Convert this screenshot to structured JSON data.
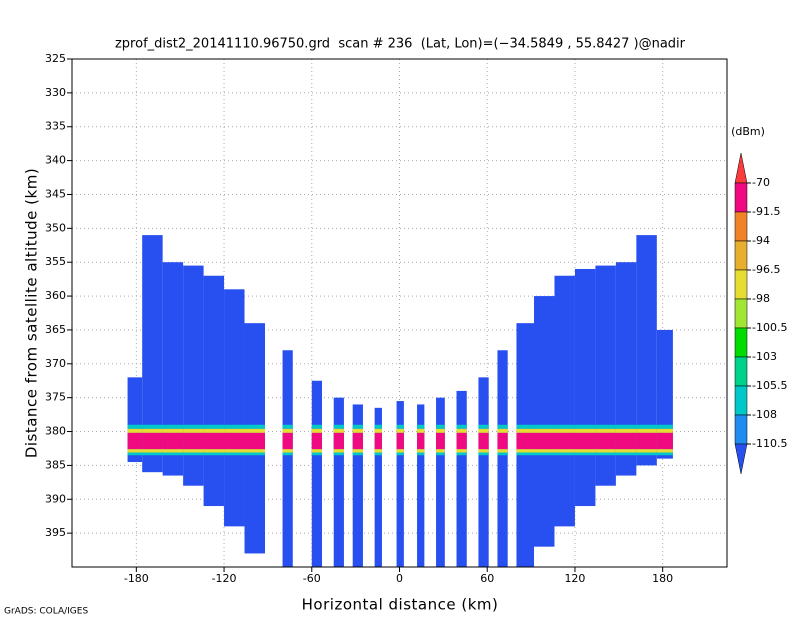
{
  "chart_data": {
    "type": "profile",
    "title": "zprof_dist2_20141110.96750.grd  scan # 236  (Lat, Lon)=(−34.5849 , 55.8427 )@nadir",
    "x_label": "Horizontal distance (km)",
    "y_label": "Distance from satellite altitude (km)",
    "credit": "GrADS: COLA/IGES",
    "xlim": [
      -224,
      224
    ],
    "xticks": [
      -180,
      -120,
      -60,
      0,
      60,
      120,
      180
    ],
    "ylim": [
      325,
      400
    ],
    "yticks": [
      325,
      330,
      335,
      340,
      345,
      350,
      355,
      360,
      365,
      370,
      375,
      380,
      385,
      390,
      395
    ],
    "grid": true,
    "column_color": "#2850f0",
    "columns": [
      [
        -186,
        -176,
        372,
        384.5
      ],
      [
        -176,
        -162,
        351,
        386
      ],
      [
        -162,
        -148,
        355,
        386.5
      ],
      [
        -148,
        -134,
        355.5,
        388
      ],
      [
        -134,
        -120,
        357,
        391
      ],
      [
        -120,
        -106,
        359,
        394
      ],
      [
        -106,
        -92,
        364,
        398
      ],
      [
        -80,
        -73,
        368,
        400
      ],
      [
        -60,
        -53,
        372.5,
        400
      ],
      [
        -45,
        -38,
        375,
        400
      ],
      [
        -32,
        -25,
        376,
        400
      ],
      [
        -17,
        -12,
        376.5,
        400
      ],
      [
        -2,
        3,
        375.5,
        400
      ],
      [
        12,
        17,
        376,
        400
      ],
      [
        25,
        31,
        375,
        400
      ],
      [
        39,
        46,
        374,
        400
      ],
      [
        54,
        61,
        372,
        400
      ],
      [
        67,
        74,
        368,
        400
      ],
      [
        80,
        92,
        364,
        400
      ],
      [
        92,
        106,
        360,
        397
      ],
      [
        106,
        120,
        357,
        394
      ],
      [
        120,
        134,
        356,
        391
      ],
      [
        134,
        148,
        355.5,
        388
      ],
      [
        148,
        162,
        355,
        386.5
      ],
      [
        162,
        176,
        351,
        385
      ],
      [
        176,
        187,
        365,
        384
      ]
    ],
    "band": [
      {
        "color": "#00c8c8",
        "top": 379,
        "bottom": 379.6
      },
      {
        "color": "#e6dc32",
        "top": 379.6,
        "bottom": 380.2
      },
      {
        "color": "#f00a82",
        "top": 380.2,
        "bottom": 382.6
      },
      {
        "color": "#e6dc32",
        "top": 382.6,
        "bottom": 383.1
      },
      {
        "color": "#00c8c8",
        "top": 383.1,
        "bottom": 383.5
      }
    ],
    "colorbar": {
      "label": "(dBm)",
      "levels": [
        -70,
        -91.5,
        -94,
        -96.5,
        -98,
        -100.5,
        -103,
        -105.5,
        -108,
        -110.5
      ],
      "colors": [
        "#fa3c3c",
        "#f00a82",
        "#f08228",
        "#e6af2d",
        "#e6dc32",
        "#a0e632",
        "#00dc00",
        "#00d28c",
        "#00c8c8",
        "#1e8cf0",
        "#2850f0"
      ]
    }
  }
}
